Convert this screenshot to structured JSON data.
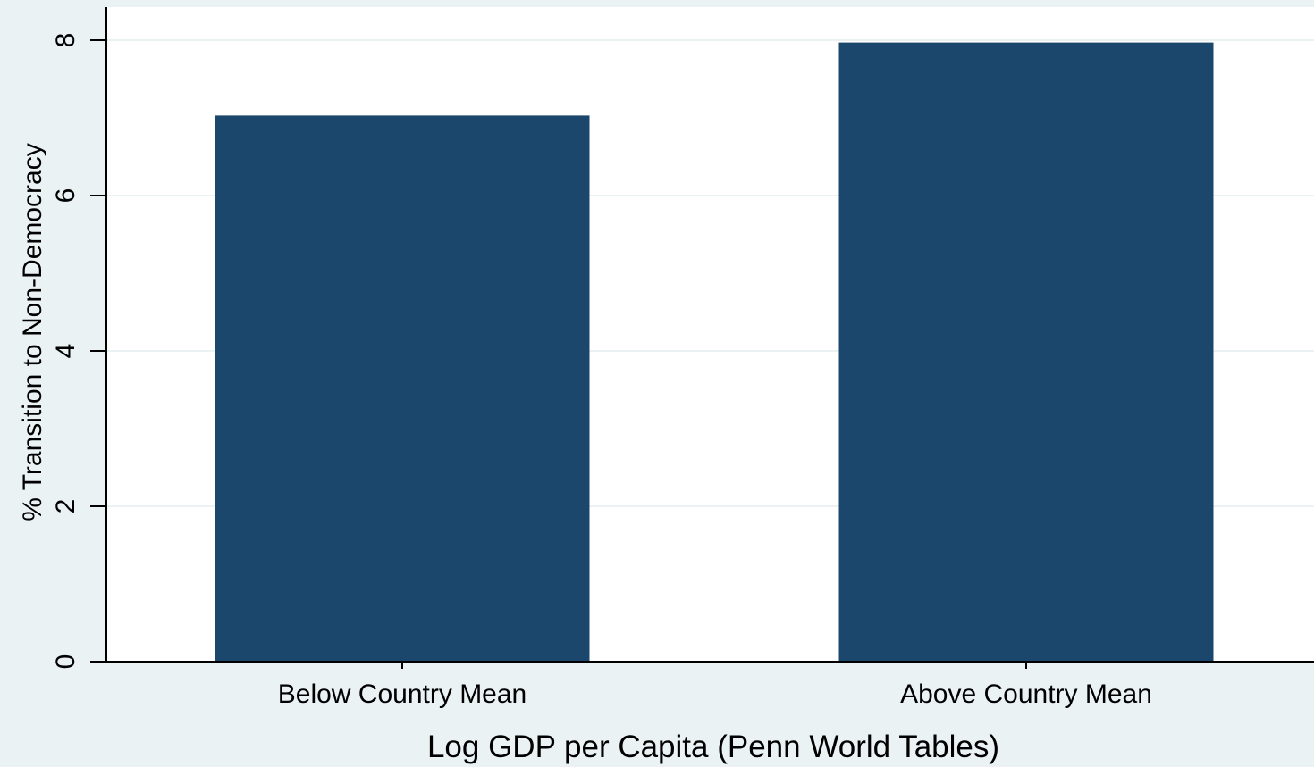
{
  "chart_data": {
    "type": "bar",
    "categories": [
      "Below Country Mean",
      "Above Country Mean"
    ],
    "values": [
      7.03,
      7.97
    ],
    "xlabel": "Log GDP per Capita (Penn World Tables)",
    "ylabel": "% Transition to Non-Democracy",
    "ylim": [
      0,
      8.4
    ],
    "yticks": [
      0,
      2,
      4,
      6,
      8
    ],
    "grid": true,
    "colors": {
      "bar": "#1c476d",
      "plot_background": "#ffffff",
      "outer_background": "#eaf2f3",
      "grid": "#eaf2f3",
      "axis": "#000000"
    }
  }
}
